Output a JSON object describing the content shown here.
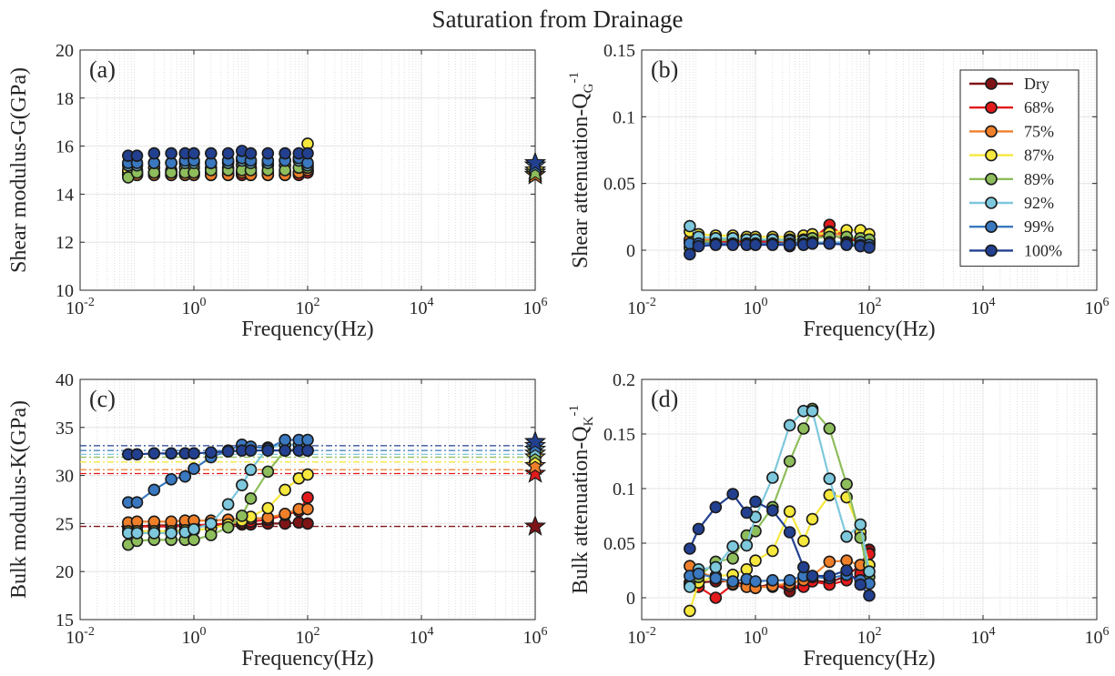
{
  "figure_title": "Saturation from Drainage",
  "colors": {
    "Dry": "#7f1416",
    "68%": "#e31a1c",
    "75%": "#f07f2a",
    "87%": "#f6e83c",
    "89%": "#8ebd5c",
    "92%": "#7dc8dc",
    "99%": "#3a78c0",
    "100%": "#22408f"
  },
  "chart_data": [
    {
      "panel": "(a)",
      "type": "scatter",
      "xscale": "log",
      "xlabel": "Frequency(Hz)",
      "ylabel": "Shear modulus-G(GPa)",
      "xlim": [
        0.01,
        1000000
      ],
      "ylim": [
        10,
        20
      ],
      "xticks": [
        0.01,
        1,
        100,
        10000,
        1000000
      ],
      "xtick_labels": [
        {
          "b": "10",
          "e": "-2"
        },
        {
          "b": "10",
          "e": "0"
        },
        {
          "b": "10",
          "e": "2"
        },
        {
          "b": "10",
          "e": "4"
        },
        {
          "b": "10",
          "e": "6"
        }
      ],
      "yticks": [
        10,
        12,
        14,
        16,
        18,
        20
      ],
      "ytick_labels": [
        "10",
        "12",
        "14",
        "16",
        "18",
        "20"
      ],
      "x": [
        0.07,
        0.1,
        0.2,
        0.4,
        0.7,
        1,
        2,
        4,
        7,
        10,
        20,
        40,
        70,
        100
      ],
      "series": [
        {
          "name": "Dry",
          "values": [
            14.9,
            14.9,
            14.9,
            14.9,
            14.9,
            14.9,
            14.9,
            14.9,
            14.9,
            14.9,
            14.9,
            14.9,
            14.9,
            15.0
          ],
          "marker_1e6": 14.9
        },
        {
          "name": "68%",
          "values": [
            14.8,
            14.8,
            14.8,
            14.8,
            14.8,
            14.8,
            14.8,
            14.8,
            14.8,
            14.8,
            14.8,
            14.8,
            14.8,
            14.9
          ],
          "marker_1e6": 14.8
        },
        {
          "name": "75%",
          "values": [
            14.8,
            14.8,
            14.8,
            14.8,
            14.8,
            14.8,
            14.8,
            14.8,
            14.9,
            14.8,
            14.8,
            14.8,
            14.9,
            15.0
          ],
          "marker_1e6": 14.8
        },
        {
          "name": "87%",
          "values": [
            15.0,
            15.0,
            15.1,
            15.0,
            15.1,
            15.1,
            15.1,
            15.1,
            15.2,
            15.1,
            15.2,
            15.2,
            15.5,
            16.1
          ],
          "marker_1e6": 15.0
        },
        {
          "name": "89%",
          "values": [
            14.7,
            14.9,
            14.9,
            14.9,
            14.9,
            14.9,
            15.0,
            15.0,
            15.0,
            15.0,
            15.0,
            15.0,
            15.1,
            15.1
          ],
          "marker_1e6": 14.9
        },
        {
          "name": "92%",
          "values": [
            15.2,
            15.2,
            15.3,
            15.3,
            15.3,
            15.3,
            15.3,
            15.3,
            15.4,
            15.3,
            15.3,
            15.4,
            15.4,
            15.2
          ],
          "marker_1e6": 15.2
        },
        {
          "name": "99%",
          "values": [
            15.3,
            15.3,
            15.3,
            15.3,
            15.4,
            15.4,
            15.3,
            15.4,
            15.5,
            15.4,
            15.4,
            15.4,
            15.5,
            15.3
          ],
          "marker_1e6": 15.2
        },
        {
          "name": "100%",
          "values": [
            15.6,
            15.6,
            15.7,
            15.7,
            15.7,
            15.7,
            15.7,
            15.7,
            15.8,
            15.7,
            15.7,
            15.7,
            15.7,
            15.7
          ],
          "marker_1e6": 15.3
        }
      ]
    },
    {
      "panel": "(b)",
      "type": "line",
      "xscale": "log",
      "xlabel": "Frequency(Hz)",
      "ylabel": "Shear attenuation-Q",
      "ylabel_sub": "G",
      "ylabel_sup": "-1",
      "xlim": [
        0.01,
        1000000
      ],
      "ylim": [
        -0.03,
        0.15
      ],
      "xticks": [
        0.01,
        1,
        100,
        10000,
        1000000
      ],
      "xtick_labels": [
        {
          "b": "10",
          "e": "-2"
        },
        {
          "b": "10",
          "e": "0"
        },
        {
          "b": "10",
          "e": "2"
        },
        {
          "b": "10",
          "e": "4"
        },
        {
          "b": "10",
          "e": "6"
        }
      ],
      "yticks": [
        0,
        0.05,
        0.1,
        0.15
      ],
      "ytick_labels": [
        "0",
        "0.05",
        "0.1",
        "0.15"
      ],
      "legend": "top-right",
      "x": [
        0.07,
        0.1,
        0.2,
        0.4,
        0.7,
        1,
        2,
        4,
        7,
        10,
        20,
        40,
        70,
        100
      ],
      "series": [
        {
          "name": "Dry",
          "values": [
            0.007,
            0.007,
            0.007,
            0.007,
            0.007,
            0.007,
            0.007,
            0.005,
            0.007,
            0.008,
            0.012,
            0.008,
            0.007,
            0.006
          ]
        },
        {
          "name": "68%",
          "values": [
            0.006,
            0.006,
            0.006,
            0.006,
            0.006,
            0.006,
            0.006,
            0.003,
            0.006,
            0.008,
            0.019,
            0.009,
            0.007,
            0.006
          ]
        },
        {
          "name": "75%",
          "values": [
            0.008,
            0.008,
            0.008,
            0.008,
            0.008,
            0.008,
            0.008,
            0.006,
            0.008,
            0.009,
            0.014,
            0.01,
            0.009,
            0.008
          ]
        },
        {
          "name": "87%",
          "values": [
            0.014,
            0.012,
            0.011,
            0.011,
            0.01,
            0.01,
            0.01,
            0.01,
            0.011,
            0.012,
            0.013,
            0.015,
            0.015,
            0.012
          ]
        },
        {
          "name": "89%",
          "values": [
            0.002,
            0.006,
            0.007,
            0.008,
            0.008,
            0.008,
            0.008,
            0.008,
            0.008,
            0.009,
            0.01,
            0.01,
            0.009,
            0.008
          ]
        },
        {
          "name": "92%",
          "values": [
            0.018,
            0.01,
            0.009,
            0.009,
            0.008,
            0.008,
            0.008,
            0.007,
            0.007,
            0.006,
            0.006,
            0.006,
            0.006,
            0.004
          ]
        },
        {
          "name": "99%",
          "values": [
            0.005,
            0.005,
            0.005,
            0.005,
            0.005,
            0.005,
            0.005,
            0.005,
            0.005,
            0.005,
            0.005,
            0.005,
            0.004,
            0.004
          ]
        },
        {
          "name": "100%",
          "values": [
            -0.003,
            0.003,
            0.004,
            0.004,
            0.004,
            0.004,
            0.004,
            0.004,
            0.004,
            0.005,
            0.005,
            0.004,
            0.003,
            0.002
          ]
        }
      ]
    },
    {
      "panel": "(c)",
      "type": "scatter",
      "xscale": "log",
      "xlabel": "Frequency(Hz)",
      "ylabel": "Bulk modulus-K(GPa)",
      "xlim": [
        0.01,
        1000000
      ],
      "ylim": [
        15,
        40
      ],
      "xticks": [
        0.01,
        1,
        100,
        10000,
        1000000
      ],
      "xtick_labels": [
        {
          "b": "10",
          "e": "-2"
        },
        {
          "b": "10",
          "e": "0"
        },
        {
          "b": "10",
          "e": "2"
        },
        {
          "b": "10",
          "e": "4"
        },
        {
          "b": "10",
          "e": "6"
        }
      ],
      "yticks": [
        15,
        20,
        25,
        30,
        35,
        40
      ],
      "ytick_labels": [
        "15",
        "20",
        "25",
        "30",
        "35",
        "40"
      ],
      "x": [
        0.07,
        0.1,
        0.2,
        0.4,
        0.7,
        1,
        2,
        4,
        7,
        10,
        20,
        40,
        70,
        100
      ],
      "series": [
        {
          "name": "Dry",
          "values": [
            24.7,
            24.7,
            24.8,
            24.8,
            24.8,
            24.8,
            24.8,
            24.9,
            24.9,
            24.9,
            25.0,
            25.0,
            25.1,
            25.0
          ],
          "marker_1e6": 24.7,
          "reference_line": 24.7
        },
        {
          "name": "68%",
          "values": [
            24.6,
            24.7,
            24.7,
            24.7,
            24.8,
            24.8,
            24.9,
            25.0,
            25.1,
            25.2,
            25.4,
            25.9,
            26.3,
            27.7
          ],
          "marker_1e6": 30.2,
          "reference_line": 30.2
        },
        {
          "name": "75%",
          "values": [
            25.1,
            25.2,
            25.2,
            25.2,
            25.3,
            25.3,
            25.3,
            25.4,
            25.5,
            25.5,
            25.6,
            26.0,
            26.5,
            26.5
          ],
          "marker_1e6": 31.0,
          "reference_line": 30.6
        },
        {
          "name": "87%",
          "values": [
            24.2,
            24.2,
            24.2,
            24.2,
            24.3,
            24.3,
            24.5,
            24.9,
            25.3,
            25.7,
            26.6,
            28.5,
            29.7,
            30.1
          ],
          "marker_1e6": 31.9,
          "reference_line": 31.4
        },
        {
          "name": "89%",
          "values": [
            22.8,
            23.2,
            23.3,
            23.3,
            23.3,
            23.3,
            23.8,
            24.6,
            25.8,
            27.6,
            30.4,
            32.6,
            32.7,
            32.6
          ],
          "marker_1e6": 32.3,
          "reference_line": 31.9
        },
        {
          "name": "92%",
          "values": [
            24.0,
            24.0,
            24.0,
            24.0,
            24.1,
            24.4,
            25.0,
            27.0,
            29.0,
            30.6,
            32.9,
            33.2,
            33.2,
            32.6
          ],
          "marker_1e6": 32.7,
          "reference_line": 32.2
        },
        {
          "name": "99%",
          "values": [
            27.2,
            27.2,
            28.5,
            29.6,
            29.9,
            30.7,
            31.9,
            32.6,
            33.2,
            33.0,
            32.8,
            33.7,
            33.7,
            33.7
          ],
          "marker_1e6": 33.1,
          "reference_line": 32.6
        },
        {
          "name": "100%",
          "values": [
            32.2,
            32.2,
            32.3,
            32.3,
            32.3,
            32.3,
            32.4,
            32.5,
            32.6,
            32.6,
            32.6,
            32.6,
            32.6,
            32.6
          ],
          "marker_1e6": 33.5,
          "reference_line": 33.1
        }
      ]
    },
    {
      "panel": "(d)",
      "type": "line",
      "xscale": "log",
      "xlabel": "Frequency(Hz)",
      "ylabel": "Bulk attenuation-Q",
      "ylabel_sub": "K",
      "ylabel_sup": "-1",
      "xlim": [
        0.01,
        1000000
      ],
      "ylim": [
        -0.02,
        0.2
      ],
      "xticks": [
        0.01,
        1,
        100,
        10000,
        1000000
      ],
      "xtick_labels": [
        {
          "b": "10",
          "e": "-2"
        },
        {
          "b": "10",
          "e": "0"
        },
        {
          "b": "10",
          "e": "2"
        },
        {
          "b": "10",
          "e": "4"
        },
        {
          "b": "10",
          "e": "6"
        }
      ],
      "yticks": [
        0,
        0.05,
        0.1,
        0.15,
        0.2
      ],
      "ytick_labels": [
        "0",
        "0.05",
        "0.1",
        "0.15",
        "0.2"
      ],
      "x": [
        0.07,
        0.1,
        0.2,
        0.4,
        0.7,
        1,
        2,
        4,
        7,
        10,
        20,
        40,
        70,
        100
      ],
      "series": [
        {
          "name": "Dry",
          "values": [
            0.012,
            0.014,
            0.015,
            0.015,
            0.012,
            0.009,
            0.013,
            0.006,
            0.012,
            0.016,
            0.014,
            0.02,
            0.03,
            0.044
          ]
        },
        {
          "name": "68%",
          "values": [
            0.014,
            0.01,
            0.0,
            0.012,
            0.01,
            0.01,
            0.01,
            0.011,
            0.01,
            0.015,
            0.012,
            0.016,
            0.022,
            0.04
          ]
        },
        {
          "name": "75%",
          "values": [
            0.029,
            0.024,
            0.018,
            0.013,
            0.01,
            0.009,
            0.011,
            0.013,
            0.016,
            0.02,
            0.033,
            0.034,
            0.03,
            0.03
          ]
        },
        {
          "name": "87%",
          "values": [
            -0.012,
            0.014,
            0.02,
            0.021,
            0.026,
            0.034,
            0.043,
            0.079,
            0.052,
            0.072,
            0.094,
            0.092,
            0.06,
            0.03
          ]
        },
        {
          "name": "89%",
          "values": [
            0.012,
            0.019,
            0.033,
            0.036,
            0.057,
            0.061,
            0.083,
            0.125,
            0.155,
            0.173,
            0.155,
            0.104,
            0.055,
            0.019
          ]
        },
        {
          "name": "92%",
          "values": [
            0.01,
            0.026,
            0.028,
            0.047,
            0.048,
            0.074,
            0.11,
            0.158,
            0.171,
            0.171,
            0.109,
            0.056,
            0.067,
            0.024
          ]
        },
        {
          "name": "99%",
          "values": [
            0.02,
            0.022,
            0.018,
            0.015,
            0.017,
            0.015,
            0.016,
            0.016,
            0.02,
            0.019,
            0.018,
            0.021,
            0.016,
            0.013
          ]
        },
        {
          "name": "100%",
          "values": [
            0.045,
            0.063,
            0.083,
            0.095,
            0.078,
            0.088,
            0.08,
            0.06,
            0.028,
            0.02,
            0.02,
            0.025,
            0.012,
            0.002
          ]
        }
      ]
    }
  ]
}
